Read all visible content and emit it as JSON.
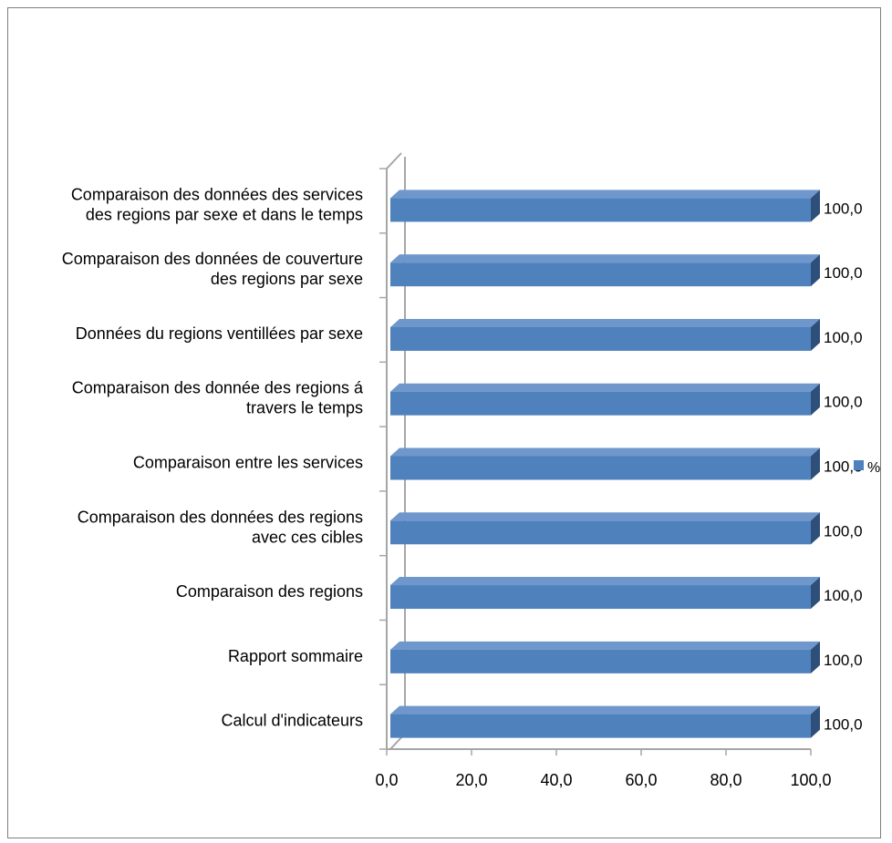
{
  "chart_data": {
    "type": "bar",
    "orientation": "horizontal",
    "style": "3d-clustered",
    "categories": [
      [
        "Comparaison des données des services",
        "des regions par sexe et dans le temps"
      ],
      [
        "Comparaison des données de couverture",
        "des regions par sexe"
      ],
      [
        "Données du regions ventillées par sexe"
      ],
      [
        "Comparaison des donnée des regions á",
        "travers le temps"
      ],
      [
        "Comparaison entre les services"
      ],
      [
        "Comparaison des données des regions",
        "avec ces cibles"
      ],
      [
        "Comparaison des regions"
      ],
      [
        "Rapport sommaire"
      ],
      [
        "Calcul d'indicateurs"
      ]
    ],
    "series": [
      {
        "name": "%",
        "values": [
          100.0,
          100.0,
          100.0,
          100.0,
          100.0,
          100.0,
          100.0,
          100.0,
          100.0
        ],
        "color": "#4f81bd"
      }
    ],
    "data_labels": [
      "100,0",
      "100,0",
      "100,0",
      "100,0",
      "100,0",
      "100,0",
      "100,0",
      "100,0",
      "100,0"
    ],
    "x_ticks": [
      "0,0",
      "20,0",
      "40,0",
      "60,0",
      "80,0",
      "100,0"
    ],
    "xlim": [
      0,
      100
    ],
    "legend": "right",
    "grid": false,
    "colors": {
      "bar_front": "#4f81bd",
      "bar_top": "#6f97cc",
      "bar_side": "#2e4f7a",
      "axis": "#a6a6a6",
      "border": "#7f7f7f"
    }
  }
}
